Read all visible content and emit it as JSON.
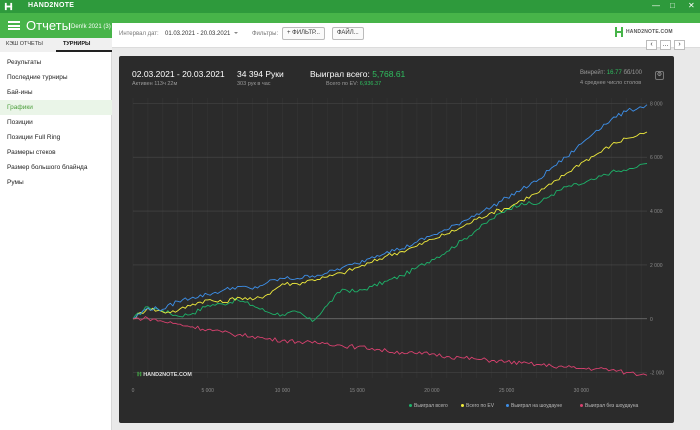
{
  "window": {
    "app_name": "HAND2NOTE",
    "controls": [
      "—",
      "□",
      "✕"
    ]
  },
  "header": {
    "title": "Отчеты",
    "user": "Den!k 2021 (3)"
  },
  "sidebar": {
    "tabs": [
      {
        "label": "КЭШ ОТЧЕТЫ",
        "active": false
      },
      {
        "label": "ТУРНИРЫ",
        "active": true
      }
    ],
    "items": [
      {
        "label": "Результаты",
        "active": false
      },
      {
        "label": "Последние турниры",
        "active": false
      },
      {
        "label": "Бай-ины",
        "active": false
      },
      {
        "label": "Графики",
        "active": true
      },
      {
        "label": "Позиции",
        "active": false
      },
      {
        "label": "Позиции Full Ring",
        "active": false
      },
      {
        "label": "Размеры стеков",
        "active": false
      },
      {
        "label": "Размер большого блайнда",
        "active": false
      },
      {
        "label": "Румы",
        "active": false
      }
    ]
  },
  "toolbar": {
    "date_label": "Интервал дат:",
    "date_value": "01.03.2021 - 20.03.2021",
    "filters_label": "Фильтры:",
    "filter_button": "ФИЛЬТР...",
    "file_button": "ФАЙЛ...",
    "brand": "HAND2NOTE.COM",
    "nav_prev": "‹",
    "nav_next": "›",
    "nav_more": "..."
  },
  "stats": {
    "range": "02.03.2021 - 20.03.2021",
    "active": "Активен 113ч 22м",
    "hands": "34 394 Руки",
    "hands_per_hour": "303 рук в час",
    "won_label": "Выиграл всего:",
    "won_value": "5,768.61",
    "ev_label": "Всего по EV:",
    "ev_value": "6,936.37",
    "winrate_label": "Винрейт:",
    "winrate_value": "16.77",
    "winrate_unit": "бб/100",
    "tables": "4 среднее число столов",
    "watermark": "HAND2NOTE.COM"
  },
  "colors": {
    "won_total": "#1db36a",
    "by_ev": "#f0ec3c",
    "showdown": "#3d8fe8",
    "no_showdown": "#d8416f",
    "stat_green": "#2fbf5f",
    "accent": "#47b449"
  },
  "chart_data": {
    "type": "line",
    "x_ticks": [
      "0",
      "5 000",
      "10 000",
      "15 000",
      "20 000",
      "25 000",
      "30 000"
    ],
    "y_ticks": [
      "8 000",
      "6 000",
      "4 000",
      "2 000",
      "0",
      "-2 000"
    ],
    "xlim": [
      0,
      34394
    ],
    "ylim": [
      -2200,
      8200
    ],
    "series": [
      {
        "name": "Выиграл всего",
        "color": "#1db36a",
        "x": [
          0,
          1000,
          2000,
          3000,
          4000,
          5000,
          6000,
          7000,
          8000,
          9000,
          10000,
          11000,
          12000,
          13000,
          14000,
          15000,
          16000,
          17000,
          18000,
          19000,
          20000,
          21000,
          22000,
          23000,
          24000,
          25000,
          26000,
          27000,
          28000,
          29000,
          30000,
          31000,
          32000,
          33000,
          34394
        ],
        "y": [
          0,
          450,
          300,
          100,
          200,
          500,
          550,
          700,
          500,
          250,
          150,
          250,
          -100,
          500,
          1100,
          1000,
          1200,
          1400,
          1600,
          1900,
          2200,
          2500,
          2900,
          3300,
          3700,
          4050,
          4300,
          4250,
          4600,
          4900,
          5000,
          5200,
          5450,
          5500,
          5769
        ]
      },
      {
        "name": "Всего по EV",
        "color": "#f0ec3c",
        "x": [
          0,
          1000,
          2000,
          3000,
          4000,
          5000,
          6000,
          7000,
          8000,
          9000,
          10000,
          11000,
          12000,
          13000,
          14000,
          15000,
          16000,
          17000,
          18000,
          19000,
          20000,
          21000,
          22000,
          23000,
          24000,
          25000,
          26000,
          27000,
          28000,
          29000,
          30000,
          31000,
          32000,
          33000,
          34394
        ],
        "y": [
          0,
          400,
          250,
          300,
          550,
          700,
          600,
          800,
          700,
          900,
          1300,
          1300,
          1450,
          1550,
          1700,
          1900,
          2100,
          2350,
          2500,
          2700,
          2950,
          3150,
          3400,
          3700,
          3950,
          4100,
          4400,
          4650,
          5000,
          5400,
          5800,
          6100,
          6450,
          6700,
          6936
        ]
      },
      {
        "name": "Выиграл на шоудауне",
        "color": "#3d8fe8",
        "x": [
          0,
          1000,
          2000,
          3000,
          4000,
          5000,
          6000,
          7000,
          8000,
          9000,
          10000,
          11000,
          12000,
          13000,
          14000,
          15000,
          16000,
          17000,
          18000,
          19000,
          20000,
          21000,
          22000,
          23000,
          24000,
          25000,
          26000,
          27000,
          28000,
          29000,
          30000,
          31000,
          32000,
          33000,
          34394
        ],
        "y": [
          0,
          400,
          350,
          650,
          800,
          900,
          1050,
          1200,
          1100,
          1350,
          1500,
          1500,
          1600,
          1700,
          1900,
          2050,
          2300,
          2500,
          2600,
          2850,
          3100,
          3300,
          3600,
          3900,
          4150,
          4500,
          4800,
          5100,
          5600,
          6000,
          6500,
          7000,
          7400,
          7700,
          7950
        ]
      },
      {
        "name": "Выиграл без шоудауна",
        "color": "#d8416f",
        "x": [
          0,
          1000,
          2000,
          3000,
          4000,
          5000,
          6000,
          7000,
          8000,
          9000,
          10000,
          11000,
          12000,
          13000,
          14000,
          15000,
          16000,
          17000,
          18000,
          19000,
          20000,
          21000,
          22000,
          23000,
          24000,
          25000,
          26000,
          27000,
          28000,
          29000,
          30000,
          31000,
          32000,
          33000,
          34394
        ],
        "y": [
          0,
          20,
          -100,
          -200,
          -300,
          -400,
          -500,
          -600,
          -650,
          -750,
          -800,
          -850,
          -900,
          -900,
          -1000,
          -1050,
          -1100,
          -1200,
          -1250,
          -1300,
          -1300,
          -1400,
          -1450,
          -1500,
          -1550,
          -1600,
          -1650,
          -1700,
          -1750,
          -1800,
          -1850,
          -1850,
          -1900,
          -2000,
          -2100
        ]
      }
    ]
  }
}
